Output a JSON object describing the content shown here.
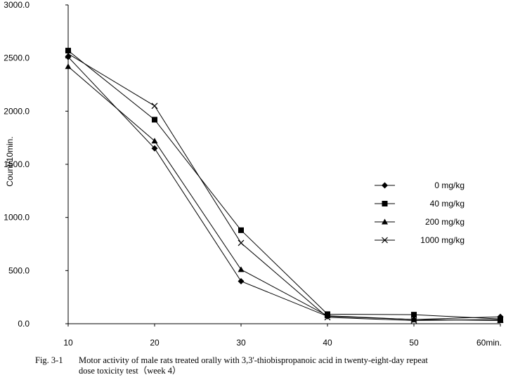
{
  "chart_data": {
    "type": "line",
    "title": "",
    "xlabel": "",
    "ylabel": "Count/10min.",
    "x": [
      10,
      20,
      30,
      40,
      50,
      60
    ],
    "x_tick_labels": [
      "10",
      "20",
      "30",
      "40",
      "50",
      "60min."
    ],
    "ylim": [
      0,
      3000
    ],
    "y_ticks": [
      0,
      500,
      1000,
      1500,
      2000,
      2500,
      3000
    ],
    "y_tick_labels": [
      "0.0",
      "500.0",
      "1000.0",
      "1500.0",
      "2000.0",
      "2500.0",
      "3000.0"
    ],
    "grid": false,
    "legend_position": "right",
    "series": [
      {
        "name": "0 mg/kg",
        "marker": "diamond",
        "values": [
          2510,
          1650,
          400,
          70,
          40,
          65
        ]
      },
      {
        "name": "40 mg/kg",
        "marker": "square",
        "values": [
          2570,
          1920,
          880,
          90,
          85,
          45
        ]
      },
      {
        "name": "200 mg/kg",
        "marker": "triangle",
        "values": [
          2420,
          1720,
          510,
          75,
          40,
          30
        ]
      },
      {
        "name": "1000 mg/kg",
        "marker": "x",
        "values": [
          2540,
          2050,
          760,
          60,
          30,
          40
        ]
      }
    ]
  },
  "caption": {
    "prefix": "Fig. 3-1",
    "line1": "Motor activity of male rats treated orally with 3,3'-thiobispropanoic acid in twenty-eight-day repeat",
    "line2": "dose toxicity test（week 4）"
  }
}
